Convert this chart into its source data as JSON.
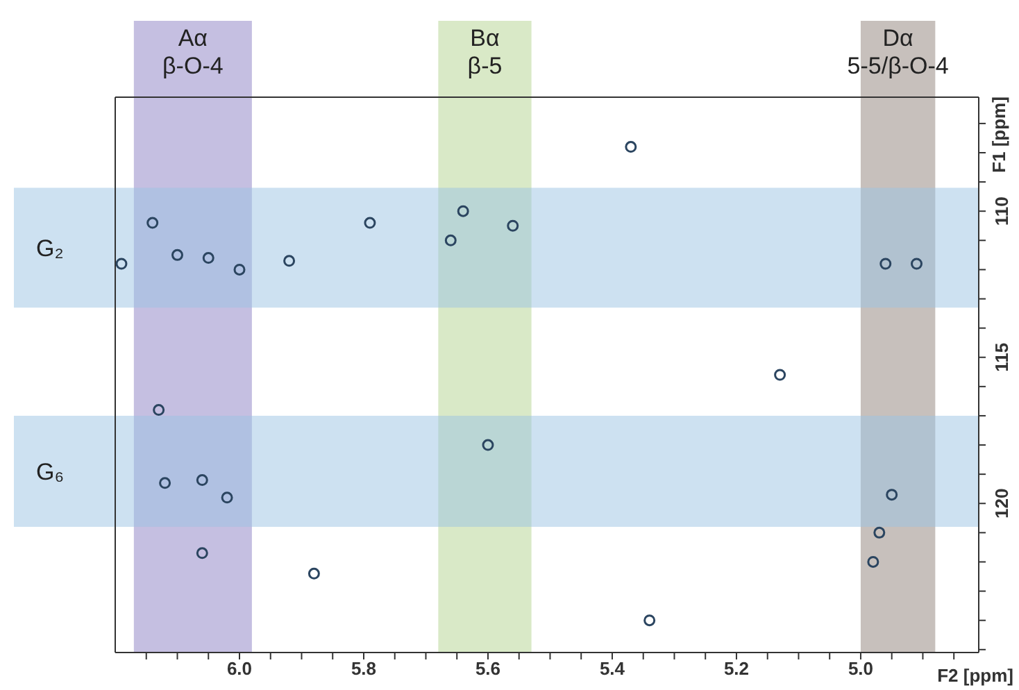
{
  "chart_data": {
    "type": "scatter",
    "xlabel": "F2 [ppm]",
    "ylabel": "F1 [ppm]",
    "xlim": [
      6.2,
      4.81
    ],
    "ylim": [
      125.1,
      106.1
    ],
    "xticks": [
      {
        "value": 6.15,
        "label": null
      },
      {
        "value": 6.1,
        "label": null
      },
      {
        "value": 6.05,
        "label": null
      },
      {
        "value": 6.0,
        "label": "6.0"
      },
      {
        "value": 5.95,
        "label": null
      },
      {
        "value": 5.9,
        "label": null
      },
      {
        "value": 5.85,
        "label": null
      },
      5.8,
      {
        "value": 5.75,
        "label": null
      },
      {
        "value": 5.7,
        "label": null
      },
      {
        "value": 5.65,
        "label": null
      },
      5.6,
      {
        "value": 5.55,
        "label": null
      },
      {
        "value": 5.5,
        "label": null
      },
      {
        "value": 5.45,
        "label": null
      },
      5.4,
      {
        "value": 5.35,
        "label": null
      },
      {
        "value": 5.3,
        "label": null
      },
      {
        "value": 5.25,
        "label": null
      },
      5.2,
      {
        "value": 5.15,
        "label": null
      },
      {
        "value": 5.1,
        "label": null
      },
      {
        "value": 5.05,
        "label": null
      },
      {
        "value": 5.0,
        "label": "5.0"
      },
      {
        "value": 4.95,
        "label": null
      },
      {
        "value": 4.9,
        "label": null
      },
      {
        "value": 4.85,
        "label": null
      }
    ],
    "yticks": [
      {
        "value": 107,
        "label": null
      },
      {
        "value": 108,
        "label": null
      },
      {
        "value": 109,
        "label": null
      },
      110,
      {
        "value": 111,
        "label": null
      },
      {
        "value": 112,
        "label": null
      },
      {
        "value": 113,
        "label": null
      },
      {
        "value": 114,
        "label": null
      },
      115,
      {
        "value": 116,
        "label": null
      },
      {
        "value": 117,
        "label": null
      },
      {
        "value": 118,
        "label": null
      },
      {
        "value": 119,
        "label": null
      },
      120,
      {
        "value": 121,
        "label": null
      },
      {
        "value": 122,
        "label": null
      },
      {
        "value": 123,
        "label": null
      },
      {
        "value": 124,
        "label": null
      },
      {
        "value": 125,
        "label": null
      }
    ],
    "marker": "circle",
    "series": [
      {
        "color": "#2b4560",
        "x": [
          6.19,
          6.14,
          6.1,
          6.05,
          6.0,
          5.92,
          5.79,
          5.64,
          5.56,
          5.66,
          5.37,
          4.96,
          4.91,
          5.13,
          6.13,
          6.12,
          6.06,
          6.02,
          6.06,
          5.88,
          5.6,
          4.95,
          4.97,
          4.98,
          5.34
        ],
        "values": [
          111.8,
          110.4,
          111.5,
          111.6,
          112.0,
          111.7,
          110.4,
          110.0,
          110.5,
          111.0,
          107.8,
          111.8,
          111.8,
          115.6,
          116.8,
          119.3,
          119.2,
          119.8,
          121.7,
          122.4,
          118.0,
          119.7,
          121.0,
          122.0,
          124.0
        ]
      }
    ],
    "bands": [
      {
        "axis": "x",
        "from": 6.17,
        "to": 5.98,
        "label": "Aα\nβ-O-4",
        "color": "#8c7fc4"
      },
      {
        "axis": "x",
        "from": 5.68,
        "to": 5.53,
        "label": "Bα\nβ-5",
        "color": "#b3d38f"
      },
      {
        "axis": "x",
        "from": 5.0,
        "to": 4.88,
        "label": "Dα\n5-5/β-O-4",
        "color": "#8f8179"
      },
      {
        "axis": "y",
        "from": 109.2,
        "to": 113.3,
        "label": "G₂",
        "color": "#9cc3e4"
      },
      {
        "axis": "y",
        "from": 117.0,
        "to": 120.8,
        "label": "G₆",
        "color": "#9cc3e4"
      }
    ]
  }
}
